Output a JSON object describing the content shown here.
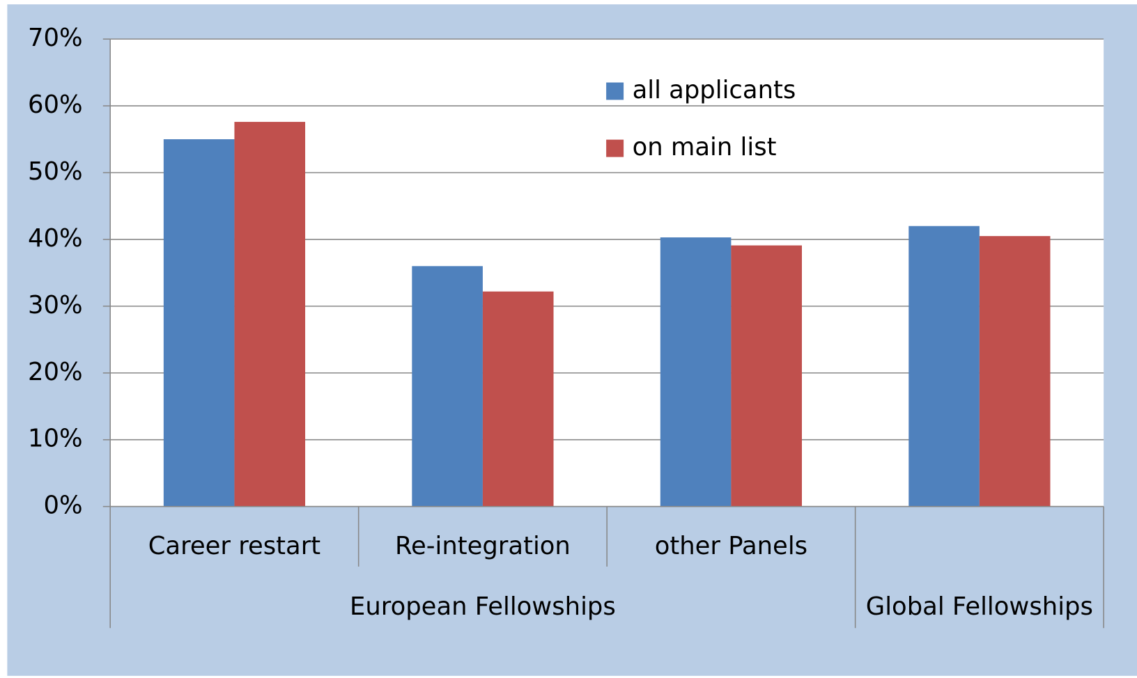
{
  "chart_data": {
    "type": "bar",
    "groups": [
      {
        "name": "European Fellowships",
        "categories": [
          "Career restart",
          "Re-integration",
          "other Panels"
        ]
      },
      {
        "name": "Global Fellowships",
        "categories": [
          null
        ]
      }
    ],
    "series": [
      {
        "name": "all applicants",
        "color": "#4f81bd",
        "values": [
          55,
          36,
          40.3,
          42
        ]
      },
      {
        "name": "on main list",
        "color": "#c0504d",
        "values": [
          57.6,
          32.2,
          39.1,
          40.5
        ]
      }
    ],
    "ylim": [
      0,
      70
    ],
    "yticks": [
      {
        "value": 0,
        "label": "0%"
      },
      {
        "value": 10,
        "label": "10%"
      },
      {
        "value": 20,
        "label": "20%"
      },
      {
        "value": 30,
        "label": "30%"
      },
      {
        "value": 40,
        "label": "40%"
      },
      {
        "value": 50,
        "label": "50%"
      },
      {
        "value": 60,
        "label": "60%"
      },
      {
        "value": 70,
        "label": "70%"
      }
    ],
    "grid": true,
    "legend": "top"
  }
}
